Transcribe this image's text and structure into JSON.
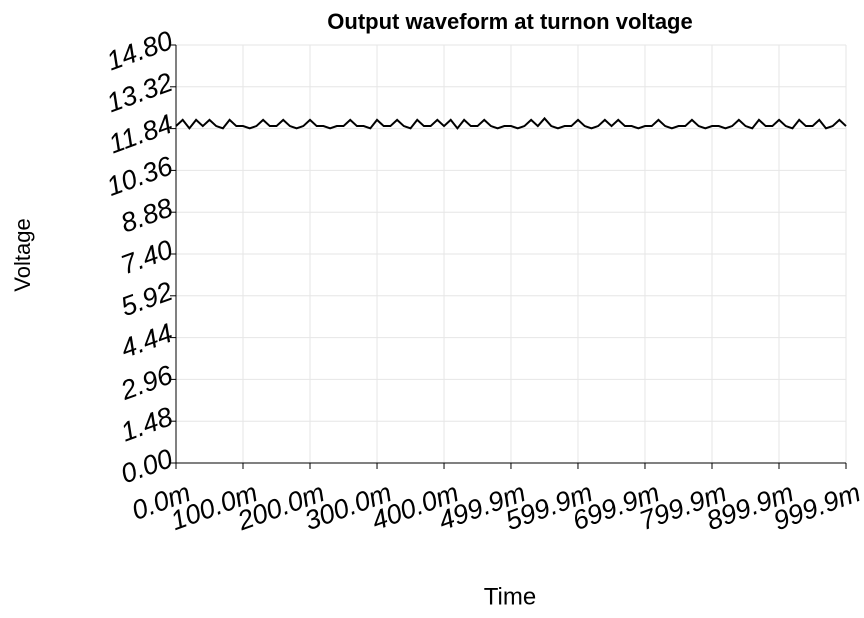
{
  "chart_data": {
    "type": "line",
    "title": "Output waveform at turnon voltage",
    "xlabel": "Time",
    "ylabel": "Voltage",
    "xlim": [
      0,
      0.9999
    ],
    "ylim": [
      0,
      14.8
    ],
    "xticks": [
      {
        "value": 0,
        "label": "0.0m"
      },
      {
        "value": 0.1,
        "label": "100.0m"
      },
      {
        "value": 0.2,
        "label": "200.0m"
      },
      {
        "value": 0.3,
        "label": "300.0m"
      },
      {
        "value": 0.4,
        "label": "400.0m"
      },
      {
        "value": 0.4999,
        "label": "499.9m"
      },
      {
        "value": 0.5999,
        "label": "599.9m"
      },
      {
        "value": 0.6999,
        "label": "699.9m"
      },
      {
        "value": 0.7999,
        "label": "799.9m"
      },
      {
        "value": 0.8999,
        "label": "899.9m"
      },
      {
        "value": 0.9999,
        "label": "999.9m"
      }
    ],
    "yticks": [
      {
        "value": 0,
        "label": "0.00"
      },
      1.48,
      2.96,
      4.44,
      5.92,
      {
        "value": 7.4,
        "label": "7.40"
      },
      8.88,
      10.36,
      11.84,
      13.32,
      {
        "value": 14.8,
        "label": "14.80"
      }
    ],
    "grid": true,
    "x": [
      0,
      0.01,
      0.02,
      0.03,
      0.04,
      0.05,
      0.06,
      0.07,
      0.08,
      0.09,
      0.1,
      0.11,
      0.12,
      0.13,
      0.14,
      0.15,
      0.16,
      0.17,
      0.18,
      0.19,
      0.2,
      0.21,
      0.22,
      0.23,
      0.24,
      0.25,
      0.26,
      0.27,
      0.28,
      0.29,
      0.3,
      0.31,
      0.32,
      0.33,
      0.34,
      0.35,
      0.36,
      0.37,
      0.38,
      0.39,
      0.4,
      0.41,
      0.42,
      0.43,
      0.44,
      0.45,
      0.46,
      0.47,
      0.48,
      0.49,
      0.5,
      0.51,
      0.52,
      0.53,
      0.54,
      0.55,
      0.56,
      0.57,
      0.58,
      0.59,
      0.6,
      0.61,
      0.62,
      0.63,
      0.64,
      0.65,
      0.66,
      0.67,
      0.68,
      0.69,
      0.7,
      0.71,
      0.72,
      0.73,
      0.74,
      0.75,
      0.76,
      0.77,
      0.78,
      0.79,
      0.8,
      0.81,
      0.82,
      0.83,
      0.84,
      0.85,
      0.86,
      0.87,
      0.88,
      0.89,
      0.9,
      0.91,
      0.92,
      0.93,
      0.94,
      0.95,
      0.96,
      0.97,
      0.98,
      0.99,
      0.9999
    ],
    "series": [
      {
        "name": "Voltage",
        "color": "#000000",
        "values": [
          11.93,
          12.15,
          11.85,
          12.15,
          11.93,
          12.15,
          11.93,
          11.85,
          12.15,
          11.93,
          11.93,
          11.85,
          11.93,
          12.15,
          11.93,
          11.93,
          12.15,
          11.93,
          11.85,
          11.93,
          12.15,
          11.93,
          11.93,
          11.85,
          11.93,
          11.93,
          12.15,
          11.93,
          11.93,
          11.85,
          12.15,
          11.93,
          11.93,
          12.15,
          11.93,
          11.85,
          12.15,
          11.93,
          11.93,
          12.15,
          11.93,
          12.15,
          11.85,
          12.15,
          11.93,
          11.93,
          12.15,
          11.93,
          11.85,
          11.93,
          11.93,
          11.85,
          11.93,
          12.15,
          11.93,
          12.2,
          11.93,
          11.85,
          11.93,
          11.93,
          12.15,
          11.93,
          11.85,
          11.93,
          12.15,
          11.93,
          12.15,
          11.93,
          11.93,
          11.85,
          11.93,
          11.93,
          12.15,
          11.93,
          11.85,
          11.93,
          11.93,
          12.15,
          11.93,
          11.85,
          11.93,
          11.93,
          11.85,
          11.93,
          12.15,
          11.93,
          11.85,
          12.15,
          11.93,
          11.93,
          12.15,
          11.93,
          11.85,
          12.15,
          11.93,
          11.93,
          12.15,
          11.85,
          11.93,
          12.15,
          11.93
        ]
      }
    ]
  }
}
